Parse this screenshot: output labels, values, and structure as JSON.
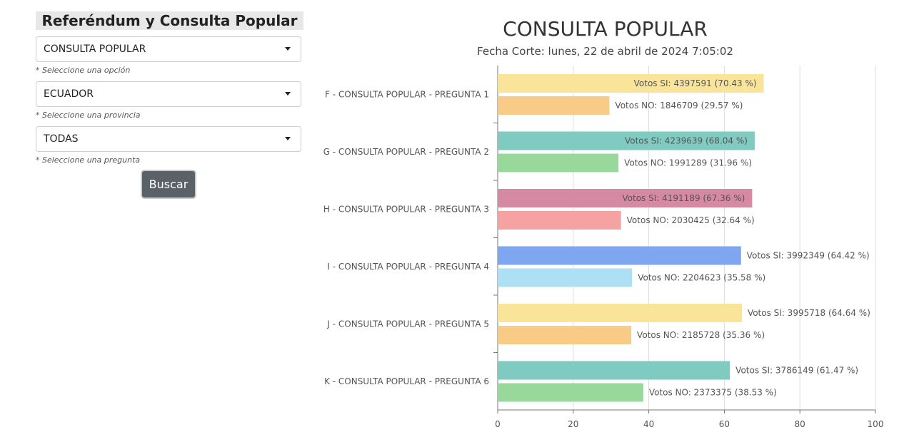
{
  "panel": {
    "title": "Referéndum y Consulta Popular",
    "selects": [
      {
        "value": "CONSULTA POPULAR",
        "hint": "* Seleccione una opción"
      },
      {
        "value": "ECUADOR",
        "hint": "* Seleccione una provincia"
      },
      {
        "value": "TODAS",
        "hint": "* Seleccione una pregunta"
      }
    ],
    "button_label": "Buscar"
  },
  "chart": {
    "title": "CONSULTA POPULAR",
    "subtitle": "Fecha Corte: lunes, 22 de abril de 2024 7:05:02"
  },
  "chart_data": {
    "type": "bar",
    "orientation": "horizontal",
    "title": "CONSULTA POPULAR",
    "subtitle": "Fecha Corte: lunes, 22 de abril de 2024 7:05:02",
    "xlim": [
      0,
      100
    ],
    "x_ticks": [
      "0",
      "20",
      "40",
      "60",
      "80",
      "100"
    ],
    "grid": true,
    "categories": [
      "F - CONSULTA POPULAR - PREGUNTA 1",
      "G - CONSULTA POPULAR - PREGUNTA 2",
      "H - CONSULTA POPULAR - PREGUNTA 3",
      "I - CONSULTA POPULAR - PREGUNTA 4",
      "J - CONSULTA POPULAR - PREGUNTA 5",
      "K - CONSULTA POPULAR - PREGUNTA 6"
    ],
    "series": [
      {
        "values": [
          70.43,
          68.04,
          67.36,
          64.42,
          64.64,
          61.47
        ],
        "labels": [
          "Votos SI: 4397591 (70.43 %)",
          "Votos SI: 4239639 (68.04 %)",
          "Votos SI: 4191189 (67.36 %)",
          "Votos SI: 3992349 (64.42 %)",
          "Votos SI: 3995718 (64.64 %)",
          "Votos SI: 3786149 (61.47 %)"
        ],
        "colors": [
          "#f9e49a",
          "#7fcbc2",
          "#d689a3",
          "#7fa6f1",
          "#f9e49a",
          "#7fcbc2"
        ]
      },
      {
        "values": [
          29.57,
          31.96,
          32.64,
          35.58,
          35.36,
          38.53
        ],
        "labels": [
          "Votos NO: 1846709 (29.57 %)",
          "Votos NO: 1991289 (31.96 %)",
          "Votos NO: 2030425 (32.64 %)",
          "Votos NO: 2204623 (35.58 %)",
          "Votos NO: 2185728 (35.36 %)",
          "Votos NO: 2373375 (38.53 %)"
        ],
        "colors": [
          "#f8cb86",
          "#98d89a",
          "#f6a1a2",
          "#aee0f3",
          "#f8cb86",
          "#98d89a"
        ]
      }
    ]
  }
}
